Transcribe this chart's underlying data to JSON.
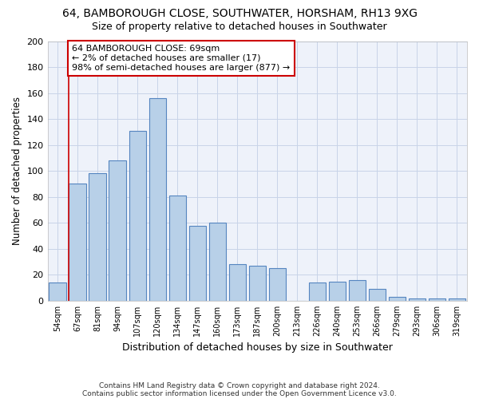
{
  "title1": "64, BAMBOROUGH CLOSE, SOUTHWATER, HORSHAM, RH13 9XG",
  "title2": "Size of property relative to detached houses in Southwater",
  "xlabel": "Distribution of detached houses by size in Southwater",
  "ylabel": "Number of detached properties",
  "categories": [
    "54sqm",
    "67sqm",
    "81sqm",
    "94sqm",
    "107sqm",
    "120sqm",
    "134sqm",
    "147sqm",
    "160sqm",
    "173sqm",
    "187sqm",
    "200sqm",
    "213sqm",
    "226sqm",
    "240sqm",
    "253sqm",
    "266sqm",
    "279sqm",
    "293sqm",
    "306sqm",
    "319sqm"
  ],
  "values": [
    14,
    90,
    98,
    108,
    131,
    156,
    81,
    58,
    60,
    28,
    27,
    25,
    0,
    14,
    15,
    16,
    9,
    3,
    2,
    2,
    2
  ],
  "bar_color": "#b8d0e8",
  "bar_edge_color": "#5585c0",
  "marker_line_color": "#cc0000",
  "annotation_box_edge_color": "#cc0000",
  "annotation_line1": "64 BAMBOROUGH CLOSE: 69sqm",
  "annotation_line2": "← 2% of detached houses are smaller (17)",
  "annotation_line3": "98% of semi-detached houses are larger (877) →",
  "ylim": [
    0,
    200
  ],
  "yticks": [
    0,
    20,
    40,
    60,
    80,
    100,
    120,
    140,
    160,
    180,
    200
  ],
  "grid_color": "#c8d4e8",
  "background_color": "#eef2fa",
  "footnote1": "Contains HM Land Registry data © Crown copyright and database right 2024.",
  "footnote2": "Contains public sector information licensed under the Open Government Licence v3.0."
}
